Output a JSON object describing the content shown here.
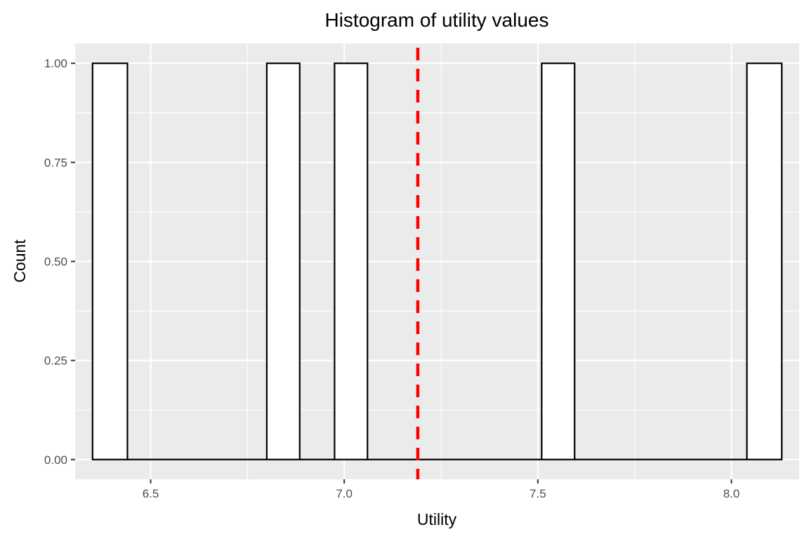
{
  "chart_data": {
    "type": "bar",
    "title": "Histogram of utility values",
    "xlabel": "Utility",
    "ylabel": "Count",
    "bins": [
      {
        "x_start": 6.35,
        "x_end": 6.44,
        "count": 1
      },
      {
        "x_start": 6.8,
        "x_end": 6.885,
        "count": 1
      },
      {
        "x_start": 6.975,
        "x_end": 7.06,
        "count": 1
      },
      {
        "x_start": 7.51,
        "x_end": 7.595,
        "count": 1
      },
      {
        "x_start": 8.04,
        "x_end": 8.13,
        "count": 1
      }
    ],
    "reference_line": {
      "x": 7.19,
      "style": "dashed",
      "color": "#ff0000"
    },
    "xlim": [
      6.305,
      8.175
    ],
    "ylim": [
      -0.05,
      1.05
    ],
    "x_ticks": [
      {
        "value": 6.5,
        "label": "6.5"
      },
      {
        "value": 7.0,
        "label": "7.0"
      },
      {
        "value": 7.5,
        "label": "7.5"
      },
      {
        "value": 8.0,
        "label": "8.0"
      }
    ],
    "y_ticks": [
      {
        "value": 0,
        "label": "0.00"
      },
      {
        "value": 0.25,
        "label": "0.25"
      },
      {
        "value": 0.5,
        "label": "0.50"
      },
      {
        "value": 0.75,
        "label": "0.75"
      },
      {
        "value": 1.0,
        "label": "1.00"
      }
    ],
    "grid": true,
    "colors": {
      "panel_background": "#ebebeb",
      "grid_major": "#ffffff",
      "bar_fill": "#ffffff",
      "bar_outline": "#000000",
      "reference_line": "#ff0000"
    }
  }
}
